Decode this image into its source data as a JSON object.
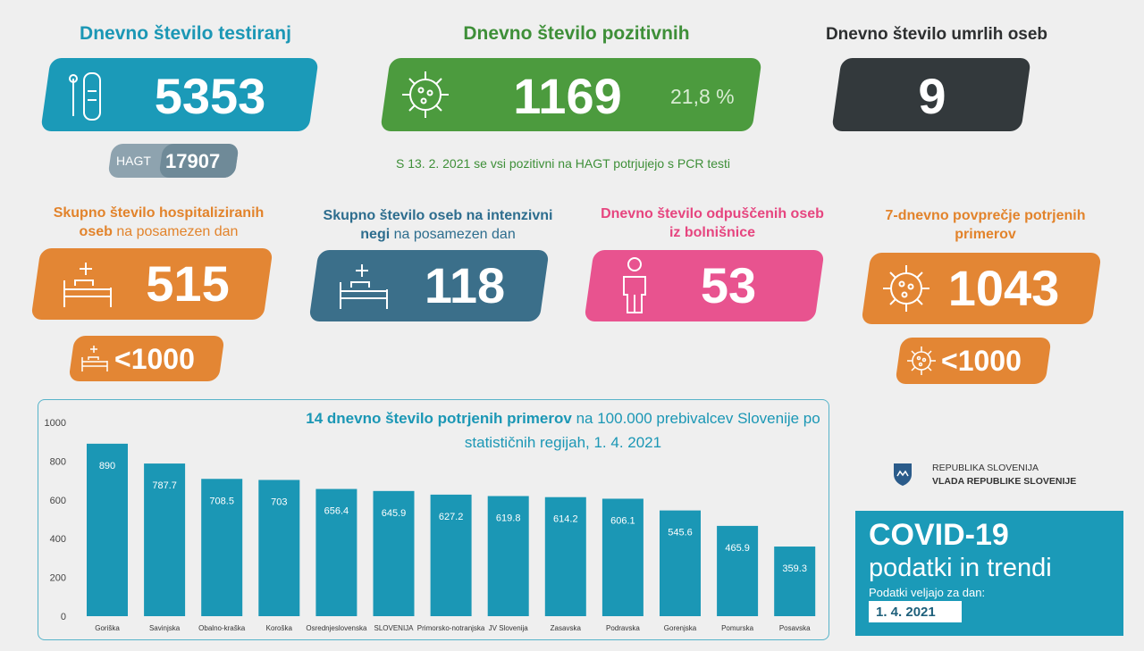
{
  "tests": {
    "title": "Dnevno število testiranj",
    "value": 5353,
    "hagt_label": "HAGT",
    "hagt_value": 17907
  },
  "positive": {
    "title": "Dnevno število pozitivnih",
    "value": 1169,
    "share": "21,8 %",
    "note": "S 13. 2. 2021 se vsi pozitivni na HAGT potrjujejo s PCR testi"
  },
  "deaths": {
    "title": "Dnevno število umrlih oseb",
    "value": 9
  },
  "hospital": {
    "title_bold": "Skupno število hospitaliziranih oseb",
    "title_rest": "na posamezen dan",
    "value": 515,
    "sub": "<1000"
  },
  "icu": {
    "title_bold": "Skupno število oseb na intenzivni negi",
    "title_rest": "na posamezen dan",
    "value": 118
  },
  "released": {
    "title": "Dnevno število odpuščenih oseb iz bolnišnice",
    "value": 53
  },
  "average": {
    "title": "7-dnevno povprečje potrjenih primerov",
    "value": 1043,
    "sub": "<1000"
  },
  "logo": {
    "line1": "REPUBLIKA SLOVENIJA",
    "line2": "VLADA REPUBLIKE SLOVENIJE"
  },
  "banner": {
    "title": "COVID-19",
    "subtitle": "podatki in trendi",
    "valid_label": "Podatki veljajo za dan:",
    "date": "1. 4. 2021"
  },
  "chart_data": {
    "type": "bar",
    "title_bold": "14 dnevno število potrjenih primerov",
    "title_rest": "na 100.000 prebivalcev Slovenije po statističnih regijah, 1. 4. 2021",
    "categories": [
      "Goriška",
      "Savinjska",
      "Obalno-kraška",
      "Koroška",
      "Osrednjeslovenska",
      "SLOVENIJA",
      "Primorsko-notranjska",
      "JV Slovenija",
      "Zasavska",
      "Podravska",
      "Gorenjska",
      "Pomurska",
      "Posavska"
    ],
    "values": [
      890,
      787.7,
      708.5,
      703,
      656.4,
      645.9,
      627.2,
      619.8,
      614.2,
      606.1,
      545.6,
      465.9,
      359.3
    ],
    "color": "#1b97b5",
    "ylim": [
      0,
      1000
    ],
    "yticks": [
      0,
      200,
      400,
      600,
      800,
      1000
    ]
  }
}
